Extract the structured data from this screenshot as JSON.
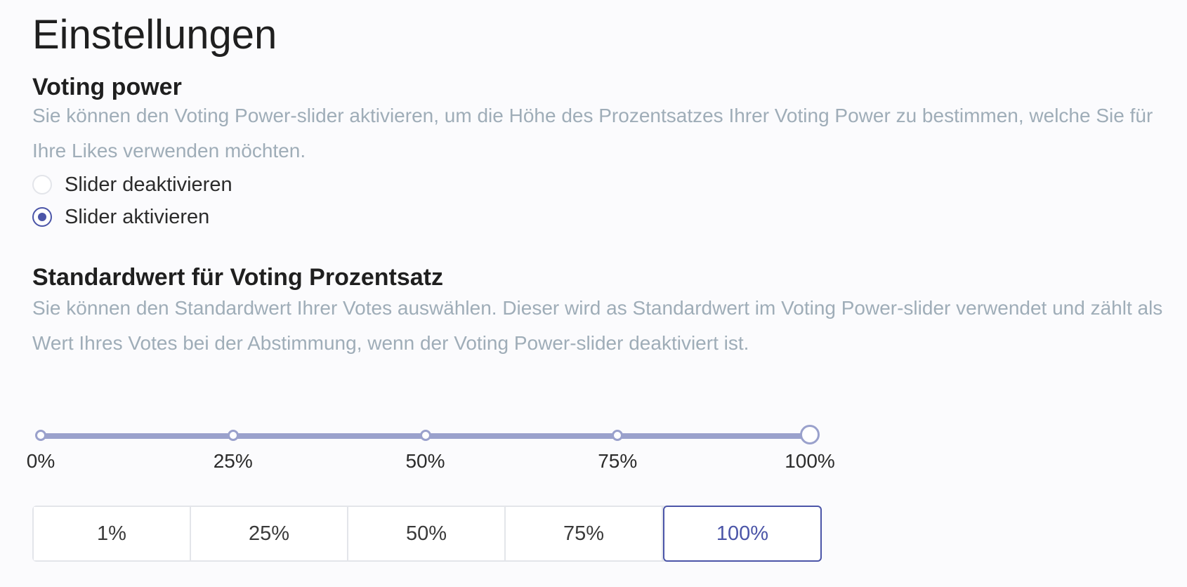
{
  "page": {
    "title": "Einstellungen"
  },
  "voting_power": {
    "title": "Voting power",
    "description": "Sie können den Voting Power-slider aktivieren, um die Höhe des Prozentsatzes Ihrer Voting Power zu bestimmen, welche Sie für Ihre Likes verwenden möchten.",
    "options": [
      {
        "label": "Slider deaktivieren",
        "checked": false
      },
      {
        "label": "Slider aktivieren",
        "checked": true
      }
    ]
  },
  "default_value": {
    "title": "Standardwert für Voting Prozentsatz",
    "description": "Sie können den Standardwert Ihrer Votes auswählen. Dieser wird as Standardwert im Voting Power-slider verwendet und zählt als Wert Ihres Votes bei der Abstimmung, wenn der Voting Power-slider deaktiviert ist.",
    "slider": {
      "marks": [
        "0%",
        "25%",
        "50%",
        "75%",
        "100%"
      ],
      "value_percent": 100
    },
    "presets": [
      {
        "label": "1%",
        "active": false
      },
      {
        "label": "25%",
        "active": false
      },
      {
        "label": "50%",
        "active": false
      },
      {
        "label": "75%",
        "active": false
      },
      {
        "label": "100%",
        "active": true
      }
    ]
  },
  "colors": {
    "accent": "#4b55a8",
    "slider": "#9aa1cc",
    "muted_text": "#9fadb8"
  }
}
